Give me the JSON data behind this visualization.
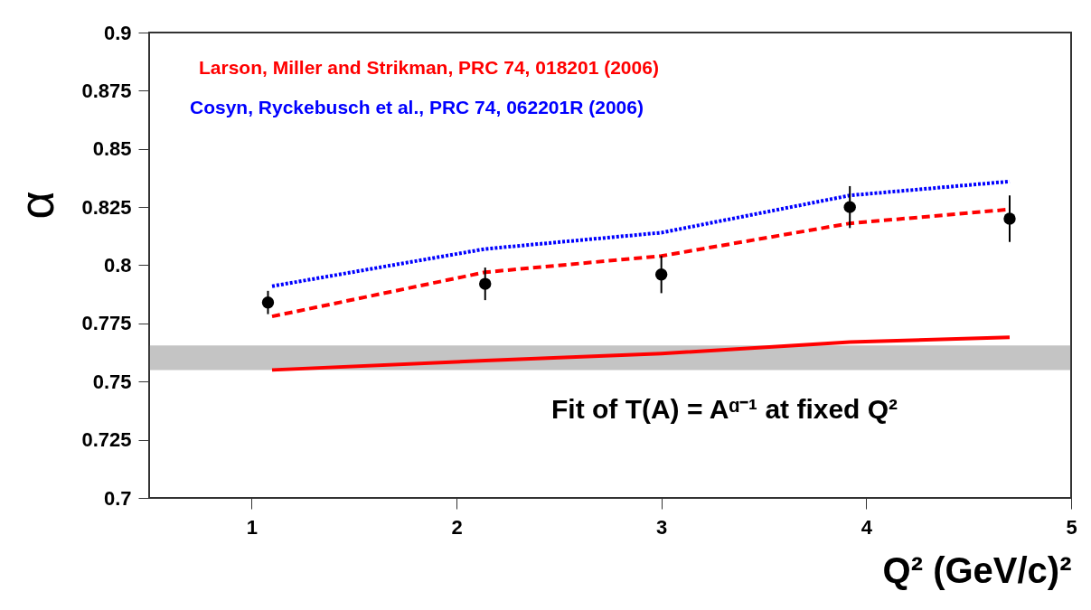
{
  "chart_data": {
    "type": "scatter",
    "xlabel": "Q² (GeV/c)²",
    "ylabel": "α",
    "xlim": [
      0.5,
      5
    ],
    "xticks": [
      1,
      2,
      3,
      4,
      5
    ],
    "ylim": [
      0.7,
      0.9
    ],
    "yticks": [
      0.7,
      0.725,
      0.75,
      0.775,
      0.8,
      0.825,
      0.85,
      0.875,
      0.9
    ],
    "grid": false,
    "series": [
      {
        "type": "line",
        "name": "Larson, Miller and Strikman, PRC 74, 018201 (2006)",
        "color": "#ff0000",
        "line_style": "dashed",
        "x": [
          1.1,
          2.14,
          3.0,
          3.92,
          4.7
        ],
        "values": [
          0.778,
          0.797,
          0.804,
          0.818,
          0.824
        ]
      },
      {
        "type": "line",
        "name": "Cosyn, Ryckebusch et al., PRC 74, 062201R (2006)",
        "color": "#0000ff",
        "line_style": "dotted",
        "x": [
          1.1,
          2.14,
          3.0,
          3.92,
          4.7
        ],
        "values": [
          0.791,
          0.807,
          0.814,
          0.83,
          0.836
        ]
      },
      {
        "type": "line",
        "color": "#ff0000",
        "line_style": "solid",
        "x": [
          1.1,
          2.14,
          3.0,
          3.92,
          4.7
        ],
        "values": [
          0.755,
          0.759,
          0.762,
          0.767,
          0.769
        ]
      },
      {
        "type": "scatter",
        "color": "#000000",
        "marker": "circle",
        "x": [
          1.08,
          2.14,
          3.0,
          3.92,
          4.7
        ],
        "values": [
          0.784,
          0.792,
          0.796,
          0.825,
          0.82
        ],
        "errors": [
          0.005,
          0.007,
          0.008,
          0.009,
          0.01
        ]
      }
    ],
    "bands": [
      {
        "axis": "y",
        "from": 0.755,
        "to": 0.7655,
        "color": "#555555"
      }
    ],
    "annotations": [
      "Fit of  T(A) = Aᵅ⁻¹  at fixed Q²"
    ]
  }
}
